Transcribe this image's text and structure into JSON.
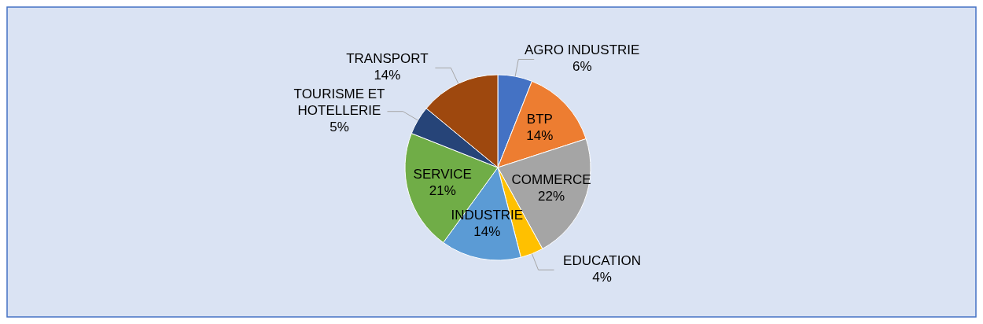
{
  "chart_data": {
    "type": "pie",
    "categories": [
      "AGRO INDUSTRIE",
      "BTP",
      "COMMERCE",
      "EDUCATION",
      "INDUSTRIE",
      "SERVICE",
      "TOURISME ET HOTELLERIE",
      "TRANSPORT"
    ],
    "values": [
      6,
      14,
      22,
      4,
      14,
      21,
      5,
      14
    ],
    "value_labels": [
      "6%",
      "14%",
      "22%",
      "4%",
      "14%",
      "21%",
      "5%",
      "14%"
    ],
    "colors": [
      "#4472c4",
      "#ed7d31",
      "#a5a5a5",
      "#ffc000",
      "#5b9bd5",
      "#70ad47",
      "#264478",
      "#9e480e"
    ]
  }
}
